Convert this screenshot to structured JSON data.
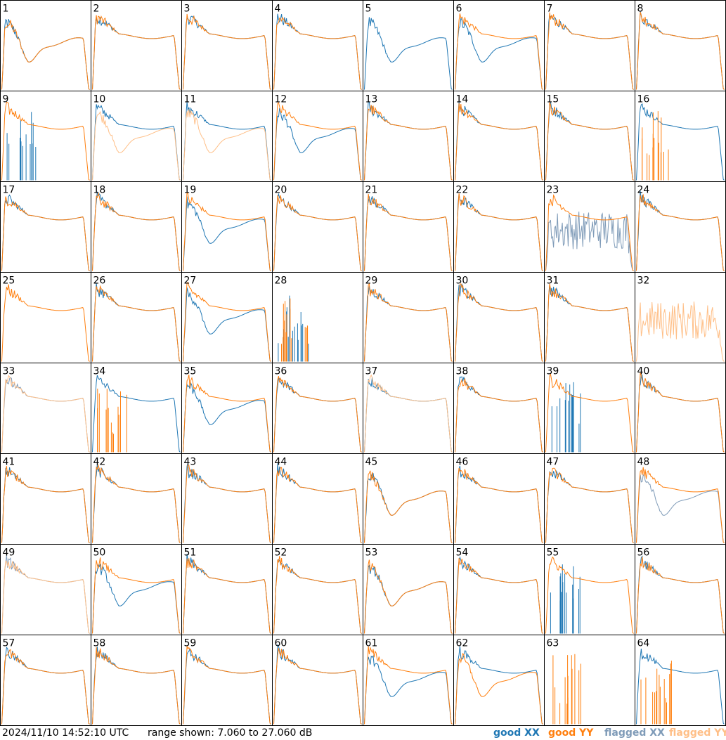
{
  "timestamp": "2024/11/10 14:52:10 UTC",
  "range_text": "range shown: 7.060 to 27.060 dB",
  "colors": {
    "good_xx": "#1f77b4",
    "good_yy": "#ff7f0e",
    "flagged_xx": "#7f9bb8",
    "flagged_yy": "#ffbf87"
  },
  "legend": [
    {
      "key": "good_xx",
      "label": "good XX"
    },
    {
      "key": "good_yy",
      "label": "good YY"
    },
    {
      "key": "flagged_xx",
      "label": "flagged XX"
    },
    {
      "key": "flagged_yy",
      "label": "flagged YY"
    }
  ],
  "chart_data": {
    "type": "line",
    "ylim": [
      7.06,
      27.06
    ],
    "grid": false,
    "legend_placement": "bottom-right",
    "panels": [
      {
        "label": "1",
        "xx": {
          "style": "dip",
          "flag": false
        },
        "yy": {
          "style": "dip",
          "flag": false
        }
      },
      {
        "label": "2",
        "xx": {
          "style": "flat",
          "flag": false
        },
        "yy": {
          "style": "flat",
          "flag": false
        }
      },
      {
        "label": "3",
        "xx": {
          "style": "flat",
          "flag": false
        },
        "yy": {
          "style": "flat",
          "flag": false
        }
      },
      {
        "label": "4",
        "xx": {
          "style": "flat",
          "flag": false
        },
        "yy": {
          "style": "flat",
          "flag": false
        }
      },
      {
        "label": "5",
        "xx": {
          "style": "dip",
          "flag": false
        },
        "yy": {
          "style": "none",
          "flag": false
        }
      },
      {
        "label": "6",
        "xx": {
          "style": "dip",
          "flag": false
        },
        "yy": {
          "style": "flat",
          "flag": false
        }
      },
      {
        "label": "7",
        "xx": {
          "style": "flat",
          "flag": false
        },
        "yy": {
          "style": "flat",
          "flag": false
        }
      },
      {
        "label": "8",
        "xx": {
          "style": "flat",
          "flag": false
        },
        "yy": {
          "style": "flat",
          "flag": false
        }
      },
      {
        "label": "9",
        "xx": {
          "style": "spikes",
          "flag": false
        },
        "yy": {
          "style": "flat",
          "flag": false
        }
      },
      {
        "label": "10",
        "xx": {
          "style": "flat",
          "flag": false
        },
        "yy": {
          "style": "dip",
          "flag": true
        }
      },
      {
        "label": "11",
        "xx": {
          "style": "flat",
          "flag": false
        },
        "yy": {
          "style": "dip",
          "flag": true
        }
      },
      {
        "label": "12",
        "xx": {
          "style": "dip",
          "flag": false
        },
        "yy": {
          "style": "flat",
          "flag": false
        }
      },
      {
        "label": "13",
        "xx": {
          "style": "flat",
          "flag": false
        },
        "yy": {
          "style": "flat",
          "flag": false
        }
      },
      {
        "label": "14",
        "xx": {
          "style": "flat",
          "flag": false
        },
        "yy": {
          "style": "flat",
          "flag": false
        }
      },
      {
        "label": "15",
        "xx": {
          "style": "flat",
          "flag": false
        },
        "yy": {
          "style": "flat",
          "flag": false
        }
      },
      {
        "label": "16",
        "xx": {
          "style": "flat",
          "flag": false
        },
        "yy": {
          "style": "spikes",
          "flag": false
        }
      },
      {
        "label": "17",
        "xx": {
          "style": "flat",
          "flag": false
        },
        "yy": {
          "style": "flat",
          "flag": false
        }
      },
      {
        "label": "18",
        "xx": {
          "style": "flat",
          "flag": false
        },
        "yy": {
          "style": "flat",
          "flag": false
        }
      },
      {
        "label": "19",
        "xx": {
          "style": "dip",
          "flag": false
        },
        "yy": {
          "style": "flat",
          "flag": false
        }
      },
      {
        "label": "20",
        "xx": {
          "style": "flat",
          "flag": false
        },
        "yy": {
          "style": "flat",
          "flag": false
        }
      },
      {
        "label": "21",
        "xx": {
          "style": "flat",
          "flag": false
        },
        "yy": {
          "style": "flat",
          "flag": false
        }
      },
      {
        "label": "22",
        "xx": {
          "style": "flat",
          "flag": false
        },
        "yy": {
          "style": "flat",
          "flag": false
        }
      },
      {
        "label": "23",
        "xx": {
          "style": "noise",
          "flag": true
        },
        "yy": {
          "style": "flat",
          "flag": false
        }
      },
      {
        "label": "24",
        "xx": {
          "style": "flat",
          "flag": false
        },
        "yy": {
          "style": "flat",
          "flag": false
        }
      },
      {
        "label": "25",
        "xx": {
          "style": "none",
          "flag": false
        },
        "yy": {
          "style": "flat",
          "flag": false
        }
      },
      {
        "label": "26",
        "xx": {
          "style": "flat",
          "flag": false
        },
        "yy": {
          "style": "flat",
          "flag": false
        }
      },
      {
        "label": "27",
        "xx": {
          "style": "dip",
          "flag": false
        },
        "yy": {
          "style": "flat",
          "flag": false
        }
      },
      {
        "label": "28",
        "xx": {
          "style": "spikes",
          "flag": false
        },
        "yy": {
          "style": "spikes",
          "flag": false
        }
      },
      {
        "label": "29",
        "xx": {
          "style": "flat",
          "flag": false
        },
        "yy": {
          "style": "flat",
          "flag": false
        }
      },
      {
        "label": "30",
        "xx": {
          "style": "flat",
          "flag": false
        },
        "yy": {
          "style": "flat",
          "flag": false
        }
      },
      {
        "label": "31",
        "xx": {
          "style": "flat",
          "flag": false
        },
        "yy": {
          "style": "flat",
          "flag": false
        }
      },
      {
        "label": "32",
        "xx": {
          "style": "none",
          "flag": false
        },
        "yy": {
          "style": "noise",
          "flag": true
        }
      },
      {
        "label": "33",
        "xx": {
          "style": "flat",
          "flag": true
        },
        "yy": {
          "style": "flat",
          "flag": true
        }
      },
      {
        "label": "34",
        "xx": {
          "style": "flat",
          "flag": false
        },
        "yy": {
          "style": "spikes",
          "flag": false
        }
      },
      {
        "label": "35",
        "xx": {
          "style": "dip",
          "flag": false
        },
        "yy": {
          "style": "flat",
          "flag": false
        }
      },
      {
        "label": "36",
        "xx": {
          "style": "flat",
          "flag": false
        },
        "yy": {
          "style": "flat",
          "flag": false
        }
      },
      {
        "label": "37",
        "xx": {
          "style": "flat",
          "flag": false
        },
        "yy": {
          "style": "flat",
          "flag": true
        }
      },
      {
        "label": "38",
        "xx": {
          "style": "flat",
          "flag": false
        },
        "yy": {
          "style": "flat",
          "flag": false
        }
      },
      {
        "label": "39",
        "xx": {
          "style": "spikes",
          "flag": false
        },
        "yy": {
          "style": "flat",
          "flag": false
        }
      },
      {
        "label": "40",
        "xx": {
          "style": "flat",
          "flag": false
        },
        "yy": {
          "style": "flat",
          "flag": false
        }
      },
      {
        "label": "41",
        "xx": {
          "style": "flat",
          "flag": false
        },
        "yy": {
          "style": "flat",
          "flag": false
        }
      },
      {
        "label": "42",
        "xx": {
          "style": "flat",
          "flag": false
        },
        "yy": {
          "style": "flat",
          "flag": false
        }
      },
      {
        "label": "43",
        "xx": {
          "style": "flat",
          "flag": false
        },
        "yy": {
          "style": "flat",
          "flag": false
        }
      },
      {
        "label": "44",
        "xx": {
          "style": "flat",
          "flag": false
        },
        "yy": {
          "style": "flat",
          "flag": false
        }
      },
      {
        "label": "45",
        "xx": {
          "style": "dip",
          "flag": false
        },
        "yy": {
          "style": "dip",
          "flag": false
        }
      },
      {
        "label": "46",
        "xx": {
          "style": "flat",
          "flag": false
        },
        "yy": {
          "style": "flat",
          "flag": false
        }
      },
      {
        "label": "47",
        "xx": {
          "style": "flat",
          "flag": false
        },
        "yy": {
          "style": "flat",
          "flag": false
        }
      },
      {
        "label": "48",
        "xx": {
          "style": "dip",
          "flag": true
        },
        "yy": {
          "style": "flat",
          "flag": false
        }
      },
      {
        "label": "49",
        "xx": {
          "style": "flat",
          "flag": true
        },
        "yy": {
          "style": "flat",
          "flag": true
        }
      },
      {
        "label": "50",
        "xx": {
          "style": "dip",
          "flag": false
        },
        "yy": {
          "style": "flat",
          "flag": false
        }
      },
      {
        "label": "51",
        "xx": {
          "style": "flat",
          "flag": false
        },
        "yy": {
          "style": "flat",
          "flag": false
        }
      },
      {
        "label": "52",
        "xx": {
          "style": "flat",
          "flag": false
        },
        "yy": {
          "style": "flat",
          "flag": false
        }
      },
      {
        "label": "53",
        "xx": {
          "style": "dip",
          "flag": false
        },
        "yy": {
          "style": "dip",
          "flag": false
        }
      },
      {
        "label": "54",
        "xx": {
          "style": "flat",
          "flag": false
        },
        "yy": {
          "style": "flat",
          "flag": false
        }
      },
      {
        "label": "55",
        "xx": {
          "style": "spikes",
          "flag": false
        },
        "yy": {
          "style": "flat",
          "flag": false
        }
      },
      {
        "label": "56",
        "xx": {
          "style": "flat",
          "flag": false
        },
        "yy": {
          "style": "flat",
          "flag": false
        }
      },
      {
        "label": "57",
        "xx": {
          "style": "flat",
          "flag": false
        },
        "yy": {
          "style": "flat",
          "flag": false
        }
      },
      {
        "label": "58",
        "xx": {
          "style": "flat",
          "flag": false
        },
        "yy": {
          "style": "flat",
          "flag": false
        }
      },
      {
        "label": "59",
        "xx": {
          "style": "flat",
          "flag": false
        },
        "yy": {
          "style": "flat",
          "flag": false
        }
      },
      {
        "label": "60",
        "xx": {
          "style": "flat",
          "flag": false
        },
        "yy": {
          "style": "flat",
          "flag": false
        }
      },
      {
        "label": "61",
        "xx": {
          "style": "dip",
          "flag": false
        },
        "yy": {
          "style": "flat",
          "flag": false
        }
      },
      {
        "label": "62",
        "xx": {
          "style": "flat",
          "flag": false
        },
        "yy": {
          "style": "dip",
          "flag": false
        }
      },
      {
        "label": "63",
        "xx": {
          "style": "none",
          "flag": false
        },
        "yy": {
          "style": "spikes",
          "flag": false
        }
      },
      {
        "label": "64",
        "xx": {
          "style": "flat",
          "flag": false
        },
        "yy": {
          "style": "spikes",
          "flag": false
        }
      }
    ]
  }
}
